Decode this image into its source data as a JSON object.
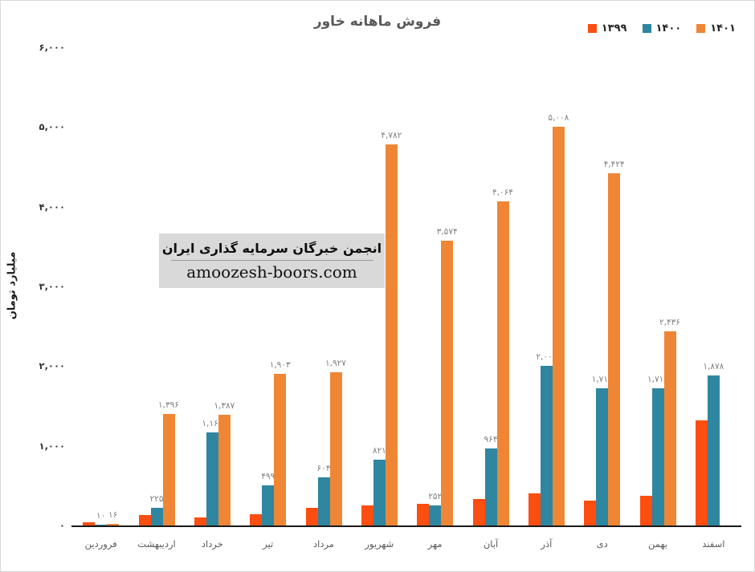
{
  "page": {
    "title": "فروش ماهانه خاور"
  },
  "legend": {
    "items": [
      {
        "label": "۱۳۹۹",
        "color": "#fc4e11"
      },
      {
        "label": "۱۴۰۰",
        "color": "#2e86a0"
      },
      {
        "label": "۱۴۰۱",
        "color": "#ef8636"
      }
    ]
  },
  "watermark": {
    "line1": "انجمن خبرگان سرمایه گذاری ایران",
    "line2": "amoozesh-boors.com"
  },
  "chart_data": {
    "type": "bar",
    "title": "فروش ماهانه خاور",
    "xlabel": "",
    "ylabel": "میلیارد تومان",
    "ylim": [
      0,
      6000
    ],
    "grid": false,
    "legend_position": "top-right",
    "yticks": [
      {
        "value": 0,
        "label": "۰"
      },
      {
        "value": 1000,
        "label": "۱,۰۰۰"
      },
      {
        "value": 2000,
        "label": "۲,۰۰۰"
      },
      {
        "value": 3000,
        "label": "۳,۰۰۰"
      },
      {
        "value": 4000,
        "label": "۴,۰۰۰"
      },
      {
        "value": 5000,
        "label": "۵,۰۰۰"
      },
      {
        "value": 6000,
        "label": "۶,۰۰۰"
      }
    ],
    "categories": [
      "فروردین",
      "اردیبهشت",
      "خرداد",
      "تیر",
      "مرداد",
      "شهریور",
      "مهر",
      "آبان",
      "آذر",
      "دی",
      "بهمن",
      "اسفند"
    ],
    "series": [
      {
        "name": "۱۳۹۹",
        "color": "#fc4e11",
        "values": [
          45,
          130,
          100,
          140,
          220,
          250,
          270,
          330,
          400,
          310,
          370,
          1320
        ],
        "labels": null
      },
      {
        "name": "۱۴۰۰",
        "color": "#2e86a0",
        "values": [
          10,
          225,
          1164,
          499,
          604,
          821,
          252,
          964,
          2000,
          1718,
          1718,
          1878
        ],
        "labels": [
          "۱۰",
          "۲۲۵",
          "۱,۱۶۴",
          "۴۹۹",
          "۶۰۴",
          "۸۲۱",
          "۲۵۲",
          "۹۶۴",
          "۲,۰۰۰",
          "۱,۷۱۸",
          "۱,۷۱۸",
          "۱,۸۷۸"
        ]
      },
      {
        "name": "۱۴۰۱",
        "color": "#ef8636",
        "values": [
          16,
          1396,
          1387,
          1903,
          1927,
          4782,
          3574,
          4064,
          5008,
          4424,
          2436,
          null
        ],
        "labels": [
          "۱۶",
          "۱,۳۹۶",
          "۱,۳۸۷",
          "۱,۹۰۳",
          "۱,۹۲۷",
          "۴,۷۸۲",
          "۳,۵۷۴",
          "۴,۰۶۴",
          "۵,۰۰۸",
          "۴,۴۲۴",
          "۲,۴۳۶",
          ""
        ]
      }
    ]
  }
}
